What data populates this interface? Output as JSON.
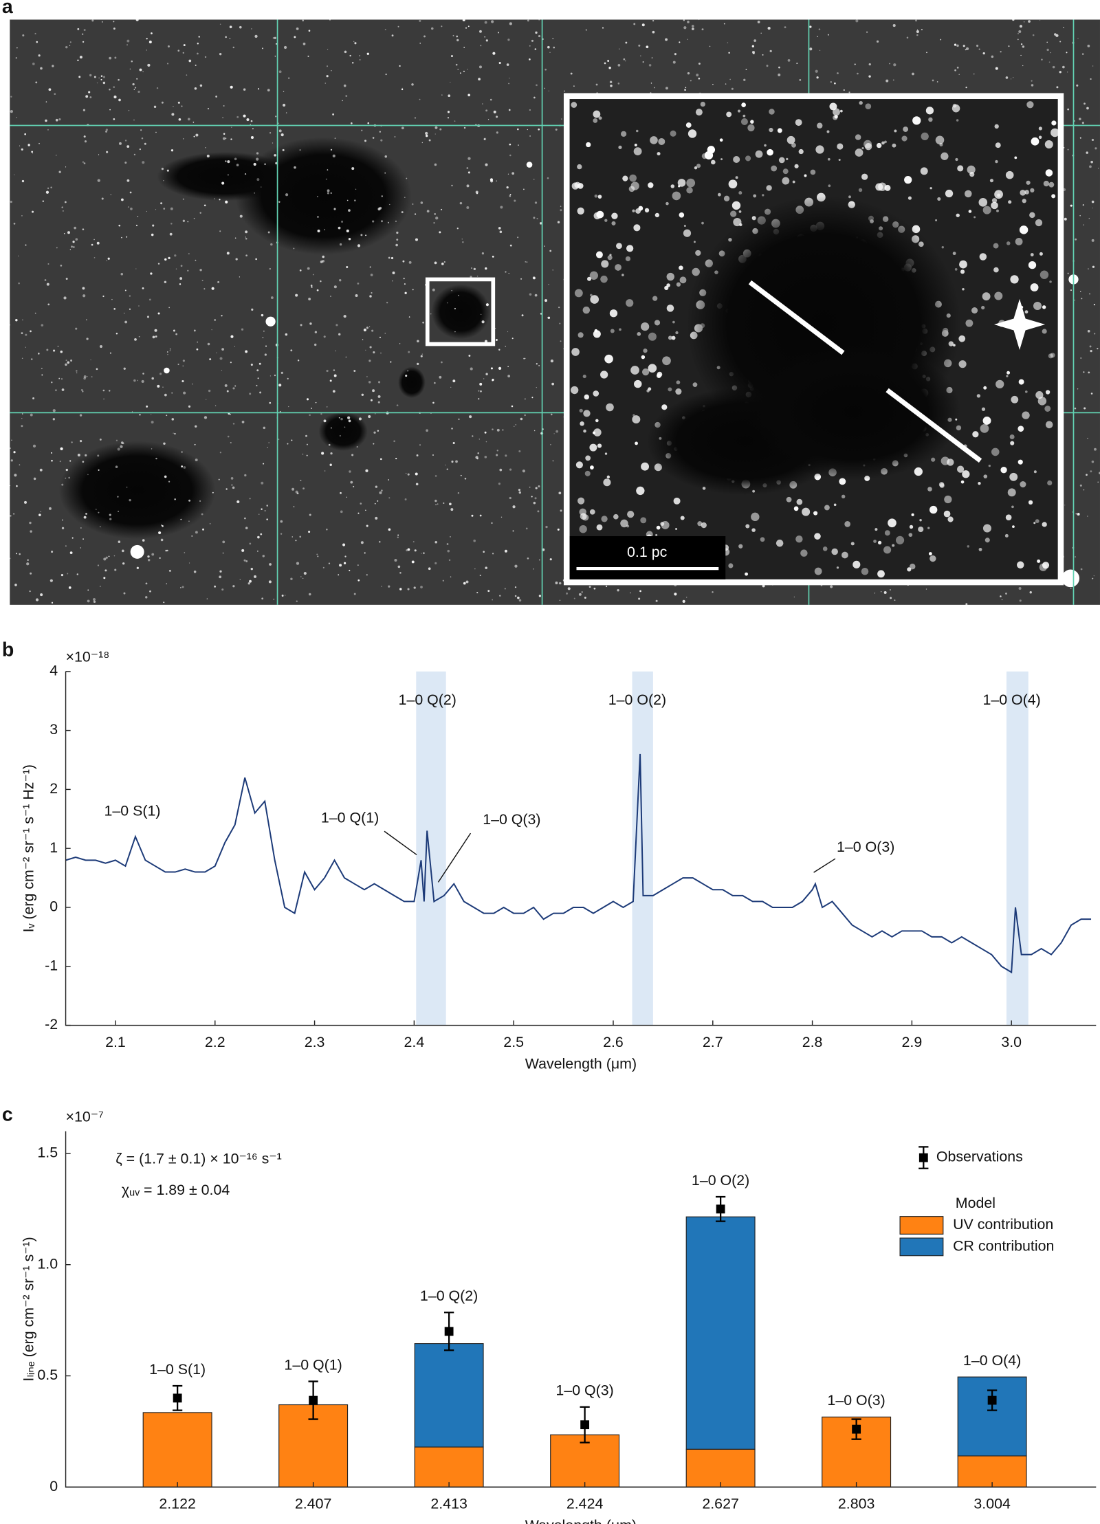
{
  "panel_labels": [
    "a",
    "b",
    "c"
  ],
  "image_panel": {
    "scale_bar": "0.1 pc"
  },
  "chart_data": [
    {
      "type": "line",
      "x_label": "Wavelength (μm)",
      "y_label": "Iᵥ (erg cm⁻² sr⁻¹ s⁻¹ Hz⁻¹)",
      "y_multiplier": "×10⁻¹⁸",
      "xlim": [
        2.05,
        3.085
      ],
      "ylim": [
        -2,
        4
      ],
      "xticks": [
        2.1,
        2.2,
        2.3,
        2.4,
        2.5,
        2.6,
        2.7,
        2.8,
        2.9,
        {
          "value": 3,
          "label": "3.0"
        }
      ],
      "yticks": [
        -2,
        -1,
        0,
        1,
        2,
        3,
        4
      ],
      "bands": [
        [
          2.402,
          2.432
        ],
        [
          2.619,
          2.64
        ],
        [
          2.995,
          3.017
        ]
      ],
      "band_color": "#dce8f5",
      "annotations": [
        {
          "text": "1–0 S(1)",
          "x": 2.122
        },
        {
          "text": "1–0 Q(1)",
          "x": 2.407
        },
        {
          "text": "1–0 Q(3)",
          "x": 2.424
        },
        {
          "text": "1–0 Q(2)",
          "x": 2.413
        },
        {
          "text": "1–0 O(2)",
          "x": 2.627
        },
        {
          "text": "1–0 O(3)",
          "x": 2.803
        },
        {
          "text": "1–0 O(4)",
          "x": 3.004
        }
      ],
      "color": "#1c3a78",
      "x": [
        2.05,
        2.06,
        2.07,
        2.08,
        2.09,
        2.1,
        2.11,
        2.12,
        2.13,
        2.14,
        2.15,
        2.16,
        2.17,
        2.18,
        2.19,
        2.2,
        2.21,
        2.22,
        2.23,
        2.24,
        2.25,
        2.26,
        2.27,
        2.28,
        2.29,
        2.3,
        2.31,
        2.32,
        2.33,
        2.34,
        2.35,
        2.36,
        2.37,
        2.38,
        2.39,
        2.4,
        2.407,
        2.41,
        2.413,
        2.42,
        2.43,
        2.44,
        2.45,
        2.46,
        2.47,
        2.48,
        2.49,
        2.5,
        2.51,
        2.52,
        2.53,
        2.54,
        2.55,
        2.56,
        2.57,
        2.58,
        2.59,
        2.6,
        2.61,
        2.62,
        2.627,
        2.63,
        2.64,
        2.65,
        2.66,
        2.67,
        2.68,
        2.69,
        2.7,
        2.71,
        2.72,
        2.73,
        2.74,
        2.75,
        2.76,
        2.77,
        2.78,
        2.79,
        2.8,
        2.803,
        2.81,
        2.82,
        2.83,
        2.84,
        2.85,
        2.86,
        2.87,
        2.88,
        2.89,
        2.9,
        2.91,
        2.92,
        2.93,
        2.94,
        2.95,
        2.96,
        2.97,
        2.98,
        2.99,
        3.0,
        3.004,
        3.01,
        3.02,
        3.03,
        3.04,
        3.05,
        3.06,
        3.07,
        3.08
      ],
      "values": [
        0.8,
        0.85,
        0.8,
        0.8,
        0.75,
        0.8,
        0.7,
        1.2,
        0.8,
        0.7,
        0.6,
        0.6,
        0.65,
        0.6,
        0.6,
        0.7,
        1.1,
        1.4,
        2.2,
        1.6,
        1.8,
        0.8,
        0.0,
        -0.1,
        0.6,
        0.3,
        0.5,
        0.8,
        0.5,
        0.4,
        0.3,
        0.4,
        0.3,
        0.2,
        0.1,
        0.1,
        0.8,
        0.1,
        1.3,
        0.1,
        0.2,
        0.4,
        0.1,
        0.0,
        -0.1,
        -0.1,
        0.0,
        -0.1,
        -0.1,
        0.0,
        -0.2,
        -0.1,
        -0.1,
        0.0,
        0.0,
        -0.1,
        0.0,
        0.1,
        0.0,
        0.1,
        2.6,
        0.2,
        0.2,
        0.3,
        0.4,
        0.5,
        0.5,
        0.4,
        0.3,
        0.3,
        0.2,
        0.2,
        0.1,
        0.1,
        0.0,
        0.0,
        0.0,
        0.1,
        0.3,
        0.4,
        0.0,
        0.1,
        -0.1,
        -0.3,
        -0.4,
        -0.5,
        -0.4,
        -0.5,
        -0.4,
        -0.4,
        -0.4,
        -0.5,
        -0.5,
        -0.6,
        -0.5,
        -0.6,
        -0.7,
        -0.8,
        -1.0,
        -1.1,
        0.0,
        -0.8,
        -0.8,
        -0.7,
        -0.8,
        -0.6,
        -0.3,
        -0.2,
        -0.2
      ]
    },
    {
      "type": "bar",
      "x_label": "Wavelength (μm)",
      "y_label": "Iₗᵢₙₑ (erg cm⁻² sr⁻¹ s⁻¹)",
      "y_multiplier": "×10⁻⁷",
      "categories": [
        "2.122",
        "2.407",
        "2.413",
        "2.424",
        "2.627",
        "2.803",
        "3.004"
      ],
      "bar_labels": [
        "1–0 S(1)",
        "1–0 Q(1)",
        "1–0 Q(2)",
        "1–0 Q(3)",
        "1–0 O(2)",
        "1–0 O(3)",
        "1–0 O(4)"
      ],
      "ylim": [
        0,
        1.6
      ],
      "yticks": [
        0,
        0.5,
        {
          "value": 1,
          "label": "1.0"
        },
        1.5
      ],
      "annotations": [
        "ζ = (1.7 ± 0.1) × 10⁻¹⁶ s⁻¹",
        "χᵤᵥ = 1.89 ± 0.04"
      ],
      "legend_title": "Model",
      "series": [
        {
          "name": "UV contribution",
          "color": "#ff8213",
          "values": [
            0.335,
            0.37,
            0.18,
            0.235,
            0.17,
            0.315,
            0.14
          ]
        },
        {
          "name": "CR contribution",
          "color": "#2176b8",
          "values": [
            0,
            0,
            0.465,
            0,
            1.045,
            0,
            0.355
          ]
        }
      ],
      "observations": {
        "name": "Observations",
        "color": "#000000",
        "values": [
          0.4,
          0.39,
          0.7,
          0.28,
          1.25,
          0.26,
          0.39
        ],
        "errors": [
          0.055,
          0.085,
          0.085,
          0.08,
          0.055,
          0.045,
          0.045
        ]
      }
    }
  ]
}
